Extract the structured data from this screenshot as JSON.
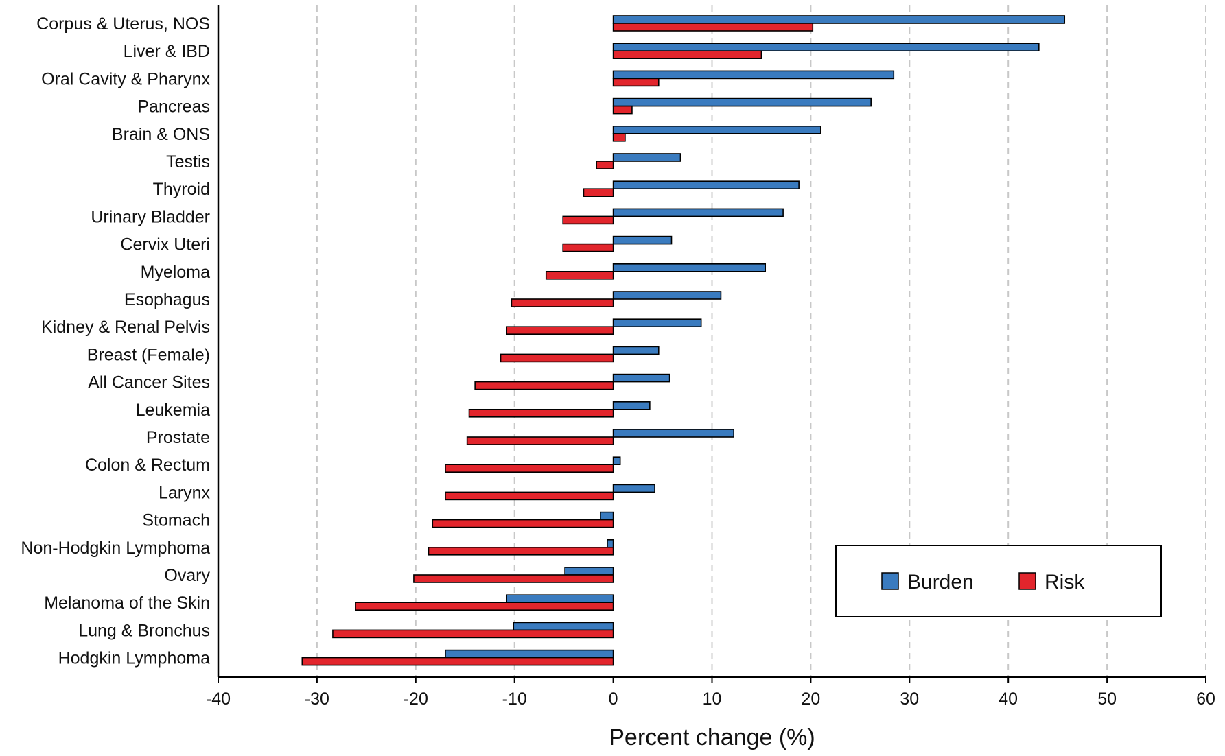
{
  "chart_data": {
    "type": "bar",
    "orientation": "horizontal",
    "xlabel": "Percent change (%)",
    "xlim": [
      -40,
      60
    ],
    "xticks": [
      -40,
      -30,
      -20,
      -10,
      0,
      10,
      20,
      30,
      40,
      50,
      60
    ],
    "grid": "vertical dashed",
    "legend_position": "bottom-right",
    "categories": [
      "Corpus & Uterus, NOS",
      "Liver & IBD",
      "Oral Cavity & Pharynx",
      "Pancreas",
      "Brain & ONS",
      "Testis",
      "Thyroid",
      "Urinary Bladder",
      "Cervix Uteri",
      "Myeloma",
      "Esophagus",
      "Kidney & Renal Pelvis",
      "Breast (Female)",
      "All Cancer Sites",
      "Leukemia",
      "Prostate",
      "Colon & Rectum",
      "Larynx",
      "Stomach",
      "Non-Hodgkin Lymphoma",
      "Ovary",
      "Melanoma of the Skin",
      "Lung & Bronchus",
      "Hodgkin Lymphoma"
    ],
    "series": [
      {
        "name": "Burden",
        "color": "#3a7bbf",
        "values": [
          45.7,
          43.1,
          28.4,
          26.1,
          21.0,
          6.8,
          18.8,
          17.2,
          5.9,
          15.4,
          10.9,
          8.9,
          4.6,
          5.7,
          3.7,
          12.2,
          0.7,
          4.2,
          -1.3,
          -0.6,
          -4.9,
          -10.8,
          -10.1,
          -17.0
        ]
      },
      {
        "name": "Risk",
        "color": "#e2252c",
        "values": [
          20.2,
          15.0,
          4.6,
          1.9,
          1.2,
          -1.7,
          -3.0,
          -5.1,
          -5.1,
          -6.8,
          -10.3,
          -10.8,
          -11.4,
          -14.0,
          -14.6,
          -14.8,
          -17.0,
          -17.0,
          -18.3,
          -18.7,
          -20.2,
          -26.1,
          -28.4,
          -31.5
        ]
      }
    ]
  }
}
